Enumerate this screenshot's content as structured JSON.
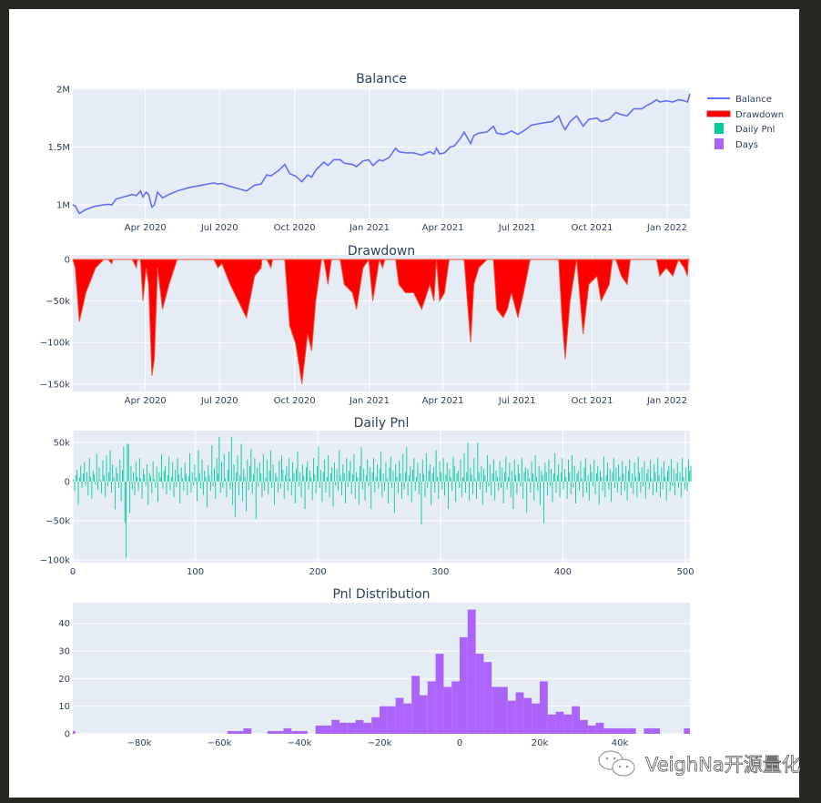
{
  "watermark": "VeighNa开源量化",
  "legend": {
    "items": [
      {
        "label": "Balance",
        "color": "#636efa",
        "kind": "line"
      },
      {
        "label": "Drawdown",
        "color": "#ff0000",
        "kind": "fill"
      },
      {
        "label": "Daily Pnl",
        "color": "#00cc96",
        "kind": "box"
      },
      {
        "label": "Days",
        "color": "#ab63fa",
        "kind": "box"
      }
    ]
  },
  "chart_data": [
    {
      "type": "line",
      "title": "Balance",
      "x_units": "days since 2020-01-01",
      "xlim": [
        2,
        759
      ],
      "ylim": [
        882,
        2008
      ],
      "y_units": "thousands",
      "color": "#636efa",
      "x_ticks": [
        {
          "label": "Apr 2020",
          "day": 91
        },
        {
          "label": "Jul 2020",
          "day": 182
        },
        {
          "label": "Oct 2020",
          "day": 274
        },
        {
          "label": "Jan 2021",
          "day": 366
        },
        {
          "label": "Apr 2021",
          "day": 456
        },
        {
          "label": "Jul 2021",
          "day": 547
        },
        {
          "label": "Oct 2021",
          "day": 639
        },
        {
          "label": "Jan 2022",
          "day": 731
        }
      ],
      "y_ticks": [
        {
          "label": "1M",
          "value": 1000
        },
        {
          "label": "1.5M",
          "value": 1500
        },
        {
          "label": "2M",
          "value": 2000
        }
      ],
      "points": [
        [
          2,
          1000
        ],
        [
          5,
          990
        ],
        [
          10,
          925
        ],
        [
          18,
          960
        ],
        [
          30,
          990
        ],
        [
          45,
          1005
        ],
        [
          50,
          1000
        ],
        [
          55,
          1050
        ],
        [
          65,
          1070
        ],
        [
          75,
          1090
        ],
        [
          80,
          1080
        ],
        [
          85,
          1120
        ],
        [
          88,
          1070
        ],
        [
          92,
          1110
        ],
        [
          95,
          1090
        ],
        [
          99,
          980
        ],
        [
          102,
          1000
        ],
        [
          106,
          1110
        ],
        [
          112,
          1060
        ],
        [
          120,
          1090
        ],
        [
          130,
          1120
        ],
        [
          145,
          1150
        ],
        [
          160,
          1170
        ],
        [
          175,
          1190
        ],
        [
          180,
          1180
        ],
        [
          185,
          1185
        ],
        [
          195,
          1160
        ],
        [
          205,
          1140
        ],
        [
          215,
          1120
        ],
        [
          225,
          1170
        ],
        [
          233,
          1180
        ],
        [
          240,
          1260
        ],
        [
          245,
          1250
        ],
        [
          255,
          1300
        ],
        [
          262,
          1350
        ],
        [
          268,
          1270
        ],
        [
          275,
          1250
        ],
        [
          280,
          1220
        ],
        [
          283,
          1200
        ],
        [
          290,
          1260
        ],
        [
          295,
          1240
        ],
        [
          300,
          1300
        ],
        [
          310,
          1370
        ],
        [
          315,
          1340
        ],
        [
          322,
          1390
        ],
        [
          330,
          1390
        ],
        [
          335,
          1360
        ],
        [
          345,
          1350
        ],
        [
          350,
          1330
        ],
        [
          358,
          1380
        ],
        [
          365,
          1390
        ],
        [
          370,
          1340
        ],
        [
          378,
          1390
        ],
        [
          382,
          1380
        ],
        [
          390,
          1410
        ],
        [
          398,
          1490
        ],
        [
          402,
          1460
        ],
        [
          410,
          1450
        ],
        [
          420,
          1450
        ],
        [
          430,
          1430
        ],
        [
          440,
          1460
        ],
        [
          445,
          1440
        ],
        [
          448,
          1490
        ],
        [
          452,
          1440
        ],
        [
          458,
          1450
        ],
        [
          465,
          1500
        ],
        [
          470,
          1510
        ],
        [
          478,
          1580
        ],
        [
          482,
          1630
        ],
        [
          486,
          1580
        ],
        [
          490,
          1530
        ],
        [
          494,
          1600
        ],
        [
          500,
          1620
        ],
        [
          510,
          1630
        ],
        [
          518,
          1680
        ],
        [
          522,
          1620
        ],
        [
          530,
          1610
        ],
        [
          535,
          1620
        ],
        [
          540,
          1640
        ],
        [
          548,
          1610
        ],
        [
          555,
          1640
        ],
        [
          565,
          1690
        ],
        [
          572,
          1700
        ],
        [
          580,
          1710
        ],
        [
          590,
          1720
        ],
        [
          598,
          1770
        ],
        [
          602,
          1700
        ],
        [
          606,
          1650
        ],
        [
          612,
          1720
        ],
        [
          620,
          1770
        ],
        [
          628,
          1680
        ],
        [
          635,
          1740
        ],
        [
          645,
          1750
        ],
        [
          650,
          1720
        ],
        [
          660,
          1740
        ],
        [
          668,
          1800
        ],
        [
          675,
          1780
        ],
        [
          682,
          1770
        ],
        [
          690,
          1830
        ],
        [
          700,
          1830
        ],
        [
          706,
          1860
        ],
        [
          712,
          1880
        ],
        [
          718,
          1910
        ],
        [
          722,
          1890
        ],
        [
          730,
          1900
        ],
        [
          738,
          1890
        ],
        [
          745,
          1910
        ],
        [
          752,
          1900
        ],
        [
          756,
          1890
        ],
        [
          759,
          1960
        ]
      ]
    },
    {
      "type": "area",
      "title": "Drawdown",
      "derived_from": "Balance",
      "x_units": "days since 2020-01-01",
      "xlim": [
        2,
        759
      ],
      "ylim": [
        -159,
        5.5
      ],
      "y_units": "thousands",
      "color": "#ff0000",
      "y_ticks": [
        {
          "label": "0",
          "value": 0
        },
        {
          "label": "−50k",
          "value": -50
        },
        {
          "label": "−100k",
          "value": -100
        },
        {
          "label": "−150k",
          "value": -150
        }
      ]
    },
    {
      "type": "bar",
      "title": "Daily Pnl",
      "xlim": [
        0,
        503.7
      ],
      "ylim": [
        -103.5,
        65
      ],
      "y_units": "thousands",
      "color": "#00cc96",
      "x_ticks": [
        {
          "label": "0",
          "value": 0
        },
        {
          "label": "100",
          "value": 100
        },
        {
          "label": "200",
          "value": 200
        },
        {
          "label": "300",
          "value": 300
        },
        {
          "label": "400",
          "value": 400
        },
        {
          "label": "500",
          "value": 500
        }
      ],
      "y_ticks": [
        {
          "label": "50k",
          "value": 50
        },
        {
          "label": "0",
          "value": 0
        },
        {
          "label": "−50k",
          "value": -50
        },
        {
          "label": "−100k",
          "value": -100
        }
      ],
      "values": [
        3,
        -12,
        8,
        15,
        -30,
        5,
        20,
        -8,
        10,
        25,
        -5,
        12,
        -18,
        30,
        6,
        -22,
        14,
        9,
        -4,
        35,
        -10,
        18,
        2,
        -15,
        27,
        8,
        -20,
        33,
        -6,
        12,
        40,
        -14,
        22,
        5,
        -35,
        18,
        10,
        -8,
        28,
        -25,
        15,
        45,
        -52,
        -97,
        48,
        48,
        -40,
        20,
        -10,
        12,
        -18,
        25,
        6,
        -12,
        30,
        4,
        -22,
        16,
        9,
        -5,
        22,
        -30,
        11,
        7,
        -15,
        26,
        3,
        -8,
        19,
        -26,
        12,
        5,
        35,
        -9,
        14,
        20,
        -16,
        8,
        32,
        -11,
        6,
        25,
        -20,
        15,
        -7,
        30,
        9,
        -28,
        18,
        4,
        -12,
        24,
        10,
        -18,
        7,
        36,
        -14,
        12,
        -5,
        22,
        5,
        -25,
        40,
        11,
        -9,
        28,
        -17,
        14,
        6,
        -33,
        21,
        8,
        -12,
        46,
        -6,
        17,
        -22,
        30,
        10,
        57,
        -14,
        25,
        -8,
        35,
        4,
        -20,
        15,
        38,
        -10,
        57,
        -30,
        22,
        -45,
        12,
        33,
        -18,
        8,
        48,
        -25,
        16,
        6,
        -38,
        28,
        -11,
        20,
        42,
        -15,
        9,
        30,
        -48,
        18,
        -6,
        24,
        10,
        -20,
        35,
        -12,
        5,
        28,
        -16,
        14,
        40,
        -8,
        22,
        -30,
        11,
        6,
        -14,
        26,
        -9,
        33,
        15,
        -22,
        8,
        19,
        -12,
        30,
        4,
        -18,
        25,
        10,
        -28,
        16,
        38,
        -6,
        12,
        -20,
        22,
        7,
        -35,
        18,
        26,
        -10,
        14,
        5,
        -24,
        30,
        9,
        -15,
        20,
        45,
        -8,
        15,
        -26,
        12,
        28,
        -14,
        6,
        34,
        -20,
        10,
        18,
        -32,
        24,
        -5,
        16,
        -12,
        40,
        8,
        -18,
        22,
        11,
        -28,
        30,
        -7,
        14,
        26,
        -16,
        9,
        35,
        -22,
        12,
        5,
        -30,
        20,
        44,
        -10,
        16,
        -24,
        8,
        28,
        -6,
        18,
        -35,
        12,
        30,
        -14,
        6,
        22,
        -9,
        16,
        38,
        -20,
        10,
        -12,
        25,
        4,
        -28,
        18,
        32,
        -8,
        14,
        -40,
        22,
        6,
        -15,
        27,
        10,
        -22,
        35,
        -10,
        12,
        44,
        -18,
        8,
        20,
        -26,
        15,
        30,
        -12,
        6,
        24,
        -16,
        11,
        -55,
        28,
        9,
        -20,
        36,
        -8,
        14,
        22,
        -30,
        10,
        18,
        -14,
        40,
        6,
        -22,
        26,
        12,
        -10,
        30,
        -18,
        8,
        24,
        -35,
        16,
        5,
        -12,
        32,
        20,
        -26,
        10,
        14,
        -8,
        28,
        -20,
        6,
        36,
        -14,
        12,
        50,
        -24,
        18,
        9,
        -16,
        30,
        4,
        -22,
        50,
        12,
        -10,
        20,
        -30,
        16,
        8,
        -14,
        34,
        -6,
        22,
        -18,
        10,
        28,
        -24,
        14,
        6,
        -12,
        26,
        -8,
        18,
        -28,
        12,
        32,
        -10,
        6,
        24,
        -20,
        14,
        -35,
        28,
        8,
        -16,
        22,
        10,
        -6,
        30,
        -22,
        12,
        18,
        -40,
        16,
        4,
        -14,
        26,
        10,
        -24,
        34,
        6,
        -12,
        20,
        -30,
        14,
        8,
        -53,
        24,
        12,
        -18,
        28,
        -6,
        16,
        -26,
        10,
        36,
        -14,
        8,
        22,
        -20,
        12,
        30,
        -10,
        16,
        6,
        -22,
        28,
        12,
        -16,
        34,
        -8,
        20,
        -28,
        10,
        14,
        -12,
        26,
        4,
        -20,
        18,
        30,
        -14,
        8,
        -24,
        22,
        12,
        -6,
        28,
        -16,
        10,
        20,
        -30,
        14,
        6,
        -12,
        32,
        -20,
        8,
        24,
        -10,
        16,
        -26,
        12,
        30,
        -8,
        18,
        -14,
        22,
        6,
        -18,
        26,
        10,
        -12,
        20,
        -24,
        14,
        28,
        -8,
        10,
        -16,
        24,
        6,
        -20,
        32,
        12,
        -14,
        18,
        -6,
        26,
        -22,
        10,
        16,
        -10,
        28,
        4,
        -18,
        22,
        12,
        -14,
        30,
        8,
        -20,
        18,
        -10,
        26,
        6,
        -24,
        14,
        20,
        -12,
        28,
        -6,
        16,
        -18,
        10,
        24,
        -8,
        12,
        -20,
        30,
        6,
        -10,
        18,
        -12,
        28,
        14,
        20
      ]
    },
    {
      "type": "bar",
      "title": "Pnl Distribution",
      "series_name": "Days",
      "xlim": [
        -96.6,
        57.5
      ],
      "ylim": [
        0,
        47.5
      ],
      "x_units": "thousands",
      "bin_width": 2,
      "color": "#ab63fa",
      "x_ticks": [
        {
          "label": "−80k",
          "value": -80
        },
        {
          "label": "−60k",
          "value": -60
        },
        {
          "label": "−40k",
          "value": -40
        },
        {
          "label": "−20k",
          "value": -20
        },
        {
          "label": "0",
          "value": 0
        },
        {
          "label": "20k",
          "value": 20
        },
        {
          "label": "40k",
          "value": 40
        }
      ],
      "y_ticks": [
        {
          "label": "0",
          "value": 0
        },
        {
          "label": "10",
          "value": 10
        },
        {
          "label": "20",
          "value": 20
        },
        {
          "label": "30",
          "value": 30
        },
        {
          "label": "40",
          "value": 40
        }
      ],
      "bins": [
        [
          -98,
          1
        ],
        [
          -58,
          1
        ],
        [
          -56,
          1
        ],
        [
          -54,
          2
        ],
        [
          -48,
          1
        ],
        [
          -46,
          1
        ],
        [
          -44,
          2
        ],
        [
          -42,
          1
        ],
        [
          -40,
          1
        ],
        [
          -36,
          3
        ],
        [
          -34,
          3
        ],
        [
          -32,
          5
        ],
        [
          -30,
          4
        ],
        [
          -28,
          4
        ],
        [
          -26,
          5
        ],
        [
          -24,
          4
        ],
        [
          -22,
          6
        ],
        [
          -20,
          10
        ],
        [
          -18,
          10
        ],
        [
          -16,
          13
        ],
        [
          -14,
          11
        ],
        [
          -12,
          21
        ],
        [
          -10,
          14
        ],
        [
          -8,
          19
        ],
        [
          -6,
          29
        ],
        [
          -4,
          17
        ],
        [
          -2,
          19
        ],
        [
          0,
          35
        ],
        [
          2,
          45
        ],
        [
          4,
          29
        ],
        [
          6,
          26
        ],
        [
          8,
          17
        ],
        [
          10,
          17
        ],
        [
          12,
          12
        ],
        [
          14,
          15
        ],
        [
          16,
          13
        ],
        [
          18,
          11
        ],
        [
          20,
          19
        ],
        [
          22,
          7
        ],
        [
          24,
          8
        ],
        [
          26,
          7
        ],
        [
          28,
          10
        ],
        [
          30,
          5
        ],
        [
          32,
          3
        ],
        [
          34,
          4
        ],
        [
          36,
          2
        ],
        [
          38,
          2
        ],
        [
          40,
          2
        ],
        [
          42,
          2
        ],
        [
          46,
          2
        ],
        [
          48,
          2
        ],
        [
          56,
          2
        ]
      ]
    }
  ]
}
